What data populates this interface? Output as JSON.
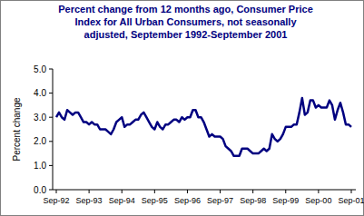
{
  "chart_data": {
    "type": "line",
    "title": "Percent change from 12 months ago, Consumer Price Index for All Urban Consumers, not seasonally adjusted, September 1992-September 2001",
    "y_label": "Percent change",
    "categories": [
      "Sep-92",
      null,
      null,
      null,
      null,
      null,
      null,
      null,
      null,
      null,
      null,
      null,
      "Sep-93",
      null,
      null,
      null,
      null,
      null,
      null,
      null,
      null,
      null,
      null,
      null,
      "Sep-94",
      null,
      null,
      null,
      null,
      null,
      null,
      null,
      null,
      null,
      null,
      null,
      "Sep-95",
      null,
      null,
      null,
      null,
      null,
      null,
      null,
      null,
      null,
      null,
      null,
      "Sep-96",
      null,
      null,
      null,
      null,
      null,
      null,
      null,
      null,
      null,
      null,
      null,
      "Sep-97",
      null,
      null,
      null,
      null,
      null,
      null,
      null,
      null,
      null,
      null,
      null,
      "Sep-98",
      null,
      null,
      null,
      null,
      null,
      null,
      null,
      null,
      null,
      null,
      null,
      "Sep-99",
      null,
      null,
      null,
      null,
      null,
      null,
      null,
      null,
      null,
      null,
      null,
      "Sep-00",
      null,
      null,
      null,
      null,
      null,
      null,
      null,
      null,
      null,
      null,
      null,
      "Sep-01"
    ],
    "values": [
      3.0,
      3.2,
      3.0,
      2.9,
      3.3,
      3.2,
      3.1,
      3.2,
      3.2,
      3.0,
      2.8,
      2.8,
      2.7,
      2.8,
      2.7,
      2.7,
      2.5,
      2.5,
      2.5,
      2.4,
      2.3,
      2.5,
      2.8,
      2.9,
      3.0,
      2.6,
      2.7,
      2.7,
      2.8,
      2.9,
      2.9,
      3.1,
      3.2,
      3.0,
      2.8,
      2.6,
      2.5,
      2.8,
      2.6,
      2.5,
      2.7,
      2.7,
      2.8,
      2.9,
      2.9,
      2.8,
      3.0,
      2.9,
      3.0,
      3.0,
      3.3,
      3.3,
      3.0,
      3.0,
      2.8,
      2.5,
      2.2,
      2.3,
      2.2,
      2.2,
      2.2,
      2.1,
      1.8,
      1.7,
      1.6,
      1.4,
      1.4,
      1.4,
      1.7,
      1.7,
      1.7,
      1.6,
      1.5,
      1.5,
      1.5,
      1.6,
      1.7,
      1.6,
      1.7,
      2.3,
      2.1,
      2.0,
      2.1,
      2.3,
      2.6,
      2.6,
      2.6,
      2.7,
      2.7,
      3.2,
      3.8,
      3.1,
      3.2,
      3.7,
      3.7,
      3.4,
      3.5,
      3.4,
      3.4,
      3.4,
      3.7,
      3.5,
      2.9,
      3.3,
      3.6,
      3.2,
      2.7,
      2.7,
      2.6
    ],
    "color": "#000080",
    "ylim": [
      0,
      5
    ],
    "yticks": [
      {
        "value": 0,
        "label": "0.0"
      },
      {
        "value": 1,
        "label": "1.0"
      },
      {
        "value": 2,
        "label": "2.0"
      },
      {
        "value": 3,
        "label": "3.0"
      },
      {
        "value": 4,
        "label": "4.0"
      },
      {
        "value": 5,
        "label": "5.0"
      }
    ],
    "grid": false
  }
}
